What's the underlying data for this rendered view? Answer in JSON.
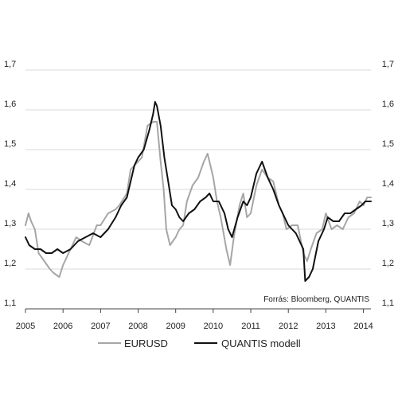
{
  "chart_data": {
    "type": "line",
    "title": "",
    "xlabel": "",
    "ylabel": "",
    "xlim": [
      2005,
      2014.2
    ],
    "ylim": [
      1.1,
      1.7
    ],
    "y_ticks": [
      "1,1",
      "1,2",
      "1,3",
      "1,4",
      "1,5",
      "1,6",
      "1,7"
    ],
    "x_ticks": [
      "2005",
      "2006",
      "2007",
      "2008",
      "2009",
      "2010",
      "2011",
      "2012",
      "2013",
      "2014"
    ],
    "grid": true,
    "legend": "bottom",
    "source": "Forrás: Bloomberg, QUANTIS",
    "series": [
      {
        "name": "EURUSD",
        "color": "#a6a6a6",
        "x": [
          2005.0,
          2005.08,
          2005.15,
          2005.25,
          2005.35,
          2005.5,
          2005.65,
          2005.75,
          2005.9,
          2006.0,
          2006.2,
          2006.35,
          2006.5,
          2006.7,
          2006.9,
          2007.0,
          2007.2,
          2007.4,
          2007.5,
          2007.7,
          2007.8,
          2008.0,
          2008.1,
          2008.25,
          2008.4,
          2008.5,
          2008.6,
          2008.68,
          2008.75,
          2008.85,
          2009.0,
          2009.1,
          2009.2,
          2009.3,
          2009.45,
          2009.6,
          2009.75,
          2009.85,
          2010.0,
          2010.1,
          2010.2,
          2010.35,
          2010.45,
          2010.55,
          2010.7,
          2010.8,
          2010.9,
          2011.0,
          2011.15,
          2011.3,
          2011.45,
          2011.6,
          2011.75,
          2011.85,
          2011.95,
          2012.1,
          2012.25,
          2012.4,
          2012.5,
          2012.6,
          2012.75,
          2012.9,
          2013.0,
          2013.15,
          2013.3,
          2013.45,
          2013.6,
          2013.75,
          2013.9,
          2014.0,
          2014.1,
          2014.2
        ],
        "values": [
          1.31,
          1.34,
          1.32,
          1.3,
          1.24,
          1.22,
          1.2,
          1.19,
          1.18,
          1.21,
          1.25,
          1.28,
          1.27,
          1.26,
          1.31,
          1.31,
          1.34,
          1.35,
          1.36,
          1.39,
          1.45,
          1.47,
          1.48,
          1.56,
          1.57,
          1.57,
          1.47,
          1.4,
          1.3,
          1.26,
          1.28,
          1.3,
          1.31,
          1.37,
          1.41,
          1.43,
          1.47,
          1.49,
          1.43,
          1.37,
          1.33,
          1.25,
          1.21,
          1.28,
          1.36,
          1.39,
          1.33,
          1.34,
          1.41,
          1.45,
          1.43,
          1.42,
          1.36,
          1.34,
          1.3,
          1.31,
          1.31,
          1.24,
          1.22,
          1.25,
          1.29,
          1.3,
          1.34,
          1.3,
          1.31,
          1.3,
          1.33,
          1.34,
          1.37,
          1.36,
          1.38,
          1.38
        ]
      },
      {
        "name": "QUANTIS modell",
        "color": "#111111",
        "x": [
          2005.0,
          2005.1,
          2005.25,
          2005.4,
          2005.55,
          2005.7,
          2005.85,
          2006.0,
          2006.2,
          2006.4,
          2006.6,
          2006.8,
          2007.0,
          2007.2,
          2007.4,
          2007.55,
          2007.7,
          2007.8,
          2007.9,
          2008.0,
          2008.15,
          2008.3,
          2008.4,
          2008.45,
          2008.5,
          2008.6,
          2008.7,
          2008.8,
          2008.9,
          2009.0,
          2009.1,
          2009.2,
          2009.35,
          2009.5,
          2009.65,
          2009.8,
          2009.9,
          2010.0,
          2010.15,
          2010.3,
          2010.4,
          2010.5,
          2010.65,
          2010.8,
          2010.9,
          2011.0,
          2011.15,
          2011.3,
          2011.45,
          2011.6,
          2011.75,
          2011.9,
          2012.0,
          2012.1,
          2012.2,
          2012.3,
          2012.4,
          2012.45,
          2012.55,
          2012.65,
          2012.8,
          2012.95,
          2013.05,
          2013.2,
          2013.35,
          2013.5,
          2013.65,
          2013.8,
          2013.95,
          2014.05,
          2014.2
        ],
        "values": [
          1.28,
          1.26,
          1.25,
          1.25,
          1.24,
          1.24,
          1.25,
          1.24,
          1.25,
          1.27,
          1.28,
          1.29,
          1.28,
          1.3,
          1.33,
          1.36,
          1.38,
          1.42,
          1.46,
          1.48,
          1.5,
          1.55,
          1.59,
          1.62,
          1.61,
          1.56,
          1.48,
          1.42,
          1.36,
          1.35,
          1.33,
          1.32,
          1.34,
          1.35,
          1.37,
          1.38,
          1.39,
          1.37,
          1.37,
          1.34,
          1.3,
          1.28,
          1.33,
          1.37,
          1.36,
          1.38,
          1.44,
          1.47,
          1.43,
          1.4,
          1.36,
          1.33,
          1.31,
          1.3,
          1.29,
          1.27,
          1.25,
          1.17,
          1.18,
          1.2,
          1.27,
          1.3,
          1.33,
          1.32,
          1.32,
          1.34,
          1.34,
          1.35,
          1.36,
          1.37,
          1.37
        ]
      }
    ]
  }
}
